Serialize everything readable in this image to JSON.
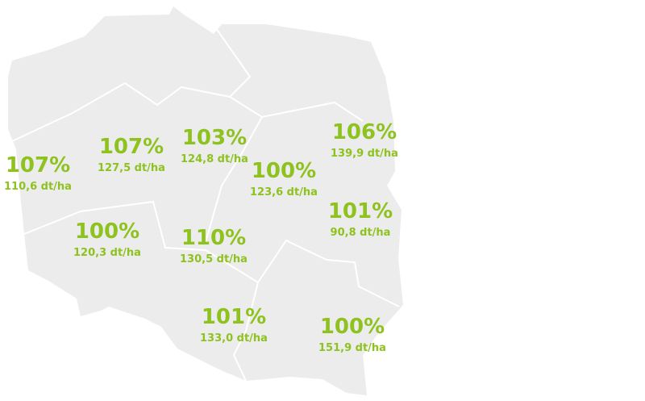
{
  "regions": [
    {
      "percent": "107%",
      "yield": "110,6 dt/ha"
    },
    {
      "percent": "107%",
      "yield": "127,5 dt/ha"
    },
    {
      "percent": "103%",
      "yield": "124,8 dt/ha"
    },
    {
      "percent": "106%",
      "yield": "139,9 dt/ha"
    },
    {
      "percent": "100%",
      "yield": "123,6 dt/ha"
    },
    {
      "percent": "101%",
      "yield": "90,8 dt/ha"
    },
    {
      "percent": "100%",
      "yield": "120,3 dt/ha"
    },
    {
      "percent": "110%",
      "yield": "130,5 dt/ha"
    },
    {
      "percent": "101%",
      "yield": "133,0 dt/ha"
    },
    {
      "percent": "100%",
      "yield": "151,9 dt/ha"
    }
  ]
}
